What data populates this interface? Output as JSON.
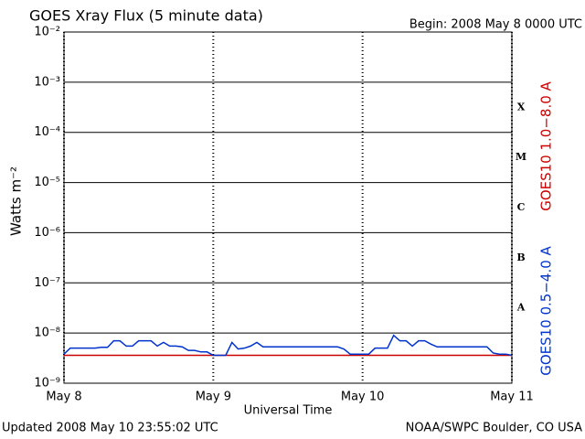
{
  "chart_data": {
    "type": "line",
    "title": "GOES Xray Flux (5 minute data)",
    "subtitle": "Begin:  2008 May 8 0000 UTC",
    "footer_left": "Updated 2008 May 10 23:55:02 UTC",
    "footer_right": "NOAA/SWPC Boulder, CO USA",
    "x_label": "Universal Time",
    "y_label": "Watts m⁻²",
    "log_scale": true,
    "grid": true,
    "xlim": [
      0,
      72
    ],
    "xticks": [
      {
        "value": 0,
        "label": "May 8"
      },
      {
        "value": 24,
        "label": "May 9"
      },
      {
        "value": 48,
        "label": "May 10"
      },
      {
        "value": 72,
        "label": "May 11"
      }
    ],
    "ylim": [
      1e-09,
      0.01
    ],
    "yticks": [
      {
        "value": 0.01,
        "label": "10⁻²"
      },
      {
        "value": 0.001,
        "label": "10⁻³"
      },
      {
        "value": 0.0001,
        "label": "10⁻⁴"
      },
      {
        "value": 1e-05,
        "label": "10⁻⁵"
      },
      {
        "value": 1e-06,
        "label": "10⁻⁶"
      },
      {
        "value": 1e-07,
        "label": "10⁻⁷"
      },
      {
        "value": 1e-08,
        "label": "10⁻⁸"
      },
      {
        "value": 1e-09,
        "label": "10⁻⁹"
      }
    ],
    "flare_classes": [
      {
        "value": 0.0001,
        "label": "X"
      },
      {
        "value": 1e-05,
        "label": "M"
      },
      {
        "value": 1e-06,
        "label": "C"
      },
      {
        "value": 1e-07,
        "label": "B"
      },
      {
        "value": 1e-08,
        "label": "A"
      }
    ],
    "x": [
      0,
      1,
      2,
      3,
      4,
      5,
      6,
      7,
      8,
      9,
      10,
      11,
      12,
      13,
      14,
      15,
      16,
      17,
      18,
      19,
      20,
      21,
      22,
      23,
      24,
      25,
      26,
      27,
      28,
      29,
      30,
      31,
      32,
      33,
      34,
      35,
      36,
      37,
      38,
      39,
      40,
      41,
      42,
      43,
      44,
      45,
      46,
      47,
      48,
      49,
      50,
      51,
      52,
      53,
      54,
      55,
      56,
      57,
      58,
      59,
      60,
      61,
      62,
      63,
      64,
      65,
      66,
      67,
      68,
      69,
      70,
      71,
      72
    ],
    "series": [
      {
        "name": "GOES10 1.0−8.0 A",
        "color": "#cc0000",
        "values": [
          3.6e-09,
          3.6e-09,
          3.6e-09,
          3.6e-09,
          3.6e-09,
          3.6e-09,
          3.6e-09,
          3.6e-09,
          3.6e-09,
          3.6e-09,
          3.6e-09,
          3.6e-09,
          3.6e-09,
          3.6e-09,
          3.6e-09,
          3.6e-09,
          3.6e-09,
          3.6e-09,
          3.6e-09,
          3.6e-09,
          3.6e-09,
          3.6e-09,
          3.6e-09,
          3.6e-09,
          3.6e-09,
          3.6e-09,
          3.6e-09,
          3.6e-09,
          3.6e-09,
          3.6e-09,
          3.6e-09,
          3.6e-09,
          3.6e-09,
          3.6e-09,
          3.6e-09,
          3.6e-09,
          3.6e-09,
          3.6e-09,
          3.6e-09,
          3.6e-09,
          3.6e-09,
          3.6e-09,
          3.6e-09,
          3.6e-09,
          3.6e-09,
          3.6e-09,
          3.6e-09,
          3.6e-09,
          3.6e-09,
          3.6e-09,
          3.6e-09,
          3.6e-09,
          3.6e-09,
          3.6e-09,
          3.6e-09,
          3.6e-09,
          3.6e-09,
          3.6e-09,
          3.6e-09,
          3.6e-09,
          3.6e-09,
          3.6e-09,
          3.6e-09,
          3.6e-09,
          3.6e-09,
          3.6e-09,
          3.6e-09,
          3.6e-09,
          3.6e-09,
          3.6e-09,
          3.6e-09,
          3.6e-09,
          3.6e-09
        ]
      },
      {
        "name": "GOES10 0.5−4.0 A",
        "color": "#0033cc",
        "values": [
          3.8e-09,
          5e-09,
          5e-09,
          5e-09,
          5e-09,
          5e-09,
          5.2e-09,
          5.2e-09,
          7e-09,
          7e-09,
          5.5e-09,
          5.5e-09,
          7e-09,
          7e-09,
          7e-09,
          5.5e-09,
          6.5e-09,
          5.5e-09,
          5.5e-09,
          5.3e-09,
          4.5e-09,
          4.5e-09,
          4.2e-09,
          4.2e-09,
          3.6e-09,
          3.6e-09,
          3.6e-09,
          6.5e-09,
          4.8e-09,
          5e-09,
          5.5e-09,
          6.5e-09,
          5.3e-09,
          5.3e-09,
          5.3e-09,
          5.3e-09,
          5.3e-09,
          5.3e-09,
          5.3e-09,
          5.3e-09,
          5.3e-09,
          5.3e-09,
          5.3e-09,
          5.3e-09,
          5.3e-09,
          4.8e-09,
          3.8e-09,
          3.8e-09,
          3.8e-09,
          3.8e-09,
          5e-09,
          5e-09,
          5e-09,
          9e-09,
          7e-09,
          7e-09,
          5.5e-09,
          7e-09,
          7e-09,
          6e-09,
          5.3e-09,
          5.3e-09,
          5.3e-09,
          5.3e-09,
          5.3e-09,
          5.3e-09,
          5.3e-09,
          5.3e-09,
          5.3e-09,
          4e-09,
          3.8e-09,
          3.8e-09,
          3.6e-09
        ]
      }
    ]
  }
}
